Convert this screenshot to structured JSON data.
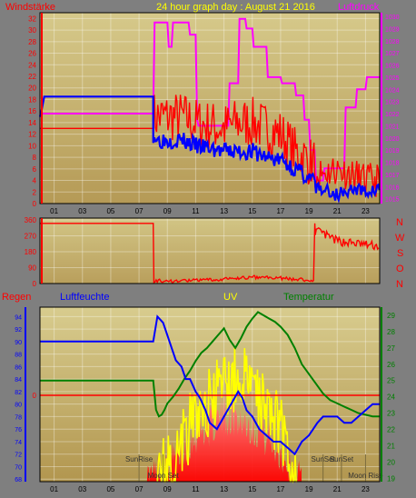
{
  "header": {
    "left_label": "Windstärke",
    "title": "24 hour graph day : August 21 2016",
    "right_label": "Luftdruck"
  },
  "wind_dir_labels": [
    "N",
    "W",
    "S",
    "O",
    "N"
  ],
  "bottom_labels": {
    "regen": "Regen",
    "luftfeuchte": "Luftfeuchte",
    "uv": "UV",
    "temperatur": "Temperatur"
  },
  "colors": {
    "plot_bg_top": "#d6c98a",
    "plot_bg_bottom": "#b59a56",
    "wind": "#ff0000",
    "gust": "#0000ff",
    "pressure": "#ff00ff",
    "humidity": "#0000ff",
    "temperature": "#008000",
    "uv": "#ffff00",
    "rain": "#ff0000",
    "title": "#ffff00",
    "luftfeuchte_label": "#0000ff",
    "temperatur_label": "#008000"
  },
  "chart_data": [
    {
      "type": "line",
      "name": "top",
      "x_tick_labels": [
        "01",
        "03",
        "05",
        "07",
        "09",
        "11",
        "13",
        "15",
        "17",
        "19",
        "21",
        "23"
      ],
      "y_left_ticks": [
        0,
        2,
        4,
        6,
        8,
        10,
        12,
        14,
        16,
        18,
        20,
        22,
        24,
        26,
        28,
        30,
        32
      ],
      "y_right_ticks": [
        1015,
        1016,
        1017,
        1018,
        1019,
        1020,
        1021,
        1022,
        1023,
        1024,
        1025,
        1026,
        1027,
        1028,
        1029,
        1030
      ],
      "ylim_left": [
        0,
        33
      ],
      "ylim_right": [
        1014.6,
        1030.3
      ],
      "xlim": [
        0,
        24
      ],
      "series": [
        {
          "key": "pressure",
          "axis": "right",
          "x": [
            0,
            0.3,
            8.0,
            8.1,
            9.0,
            9.1,
            9.3,
            9.4,
            10.5,
            10.6,
            11.0,
            11.1,
            11.2,
            13.3,
            13.4,
            14.0,
            14.1,
            14.5,
            14.6,
            15.0,
            15.1,
            16.0,
            16.1,
            17.0,
            17.1,
            18.0,
            18.1,
            18.6,
            18.7,
            19.0,
            19.1,
            19.4,
            19.5,
            20.0,
            20.1,
            21.5,
            21.6,
            22.3,
            22.4,
            23.0,
            23.1,
            24.0
          ],
          "y": [
            1022,
            1022,
            1022,
            1029.5,
            1029.5,
            1027.5,
            1027.5,
            1029.5,
            1029.5,
            1028.5,
            1028.5,
            1021.5,
            1021,
            1021,
            1024.5,
            1024.5,
            1029.8,
            1029.8,
            1029,
            1029,
            1027.5,
            1027.5,
            1025,
            1025,
            1024.5,
            1024.5,
            1023.5,
            1023.5,
            1021.5,
            1021.5,
            1019,
            1019,
            1016.5,
            1016.5,
            1017.5,
            1017.5,
            1022.5,
            1022.5,
            1024,
            1024,
            1025,
            1025
          ]
        },
        {
          "key": "wind",
          "axis": "left",
          "x": [
            0,
            0.3,
            8.0
          ],
          "y": [
            13,
            13,
            13
          ]
        },
        {
          "key": "gust",
          "axis": "left",
          "x": [
            0,
            0.1,
            0.3,
            8.0
          ],
          "y": [
            15,
            16,
            18.5,
            18.5
          ]
        }
      ],
      "noisy_segments": [
        {
          "key": "wind",
          "from": 8.0,
          "to": 19.5,
          "seed": 7,
          "profile": [
            [
              8.0,
              15
            ],
            [
              9.0,
              15
            ],
            [
              10.0,
              15
            ],
            [
              11,
              14
            ],
            [
              13,
              13
            ],
            [
              14,
              14
            ],
            [
              15,
              14
            ],
            [
              17,
              12
            ],
            [
              18,
              9
            ],
            [
              19.3,
              7
            ]
          ],
          "amp": 4.5,
          "step": 0.08
        },
        {
          "key": "wind",
          "from": 19.5,
          "to": 24.0,
          "seed": 11,
          "profile": [
            [
              19.5,
              5
            ],
            [
              21,
              6
            ],
            [
              22,
              5
            ],
            [
              23,
              4
            ],
            [
              24,
              4
            ]
          ],
          "amp": 3,
          "step": 0.08
        },
        {
          "key": "gust",
          "from": 8.0,
          "to": 19.5,
          "seed": 3,
          "profile": [
            [
              8.0,
              12
            ],
            [
              8.3,
              11
            ],
            [
              9,
              11
            ],
            [
              10,
              11
            ],
            [
              11,
              10
            ],
            [
              12,
              9.5
            ],
            [
              13,
              9
            ],
            [
              14,
              9
            ],
            [
              15,
              9
            ],
            [
              16,
              8
            ],
            [
              17,
              7.5
            ],
            [
              18,
              6
            ],
            [
              19.3,
              4
            ]
          ],
          "amp": 1.5,
          "step": 0.08
        },
        {
          "key": "gust",
          "from": 19.5,
          "to": 24.0,
          "seed": 5,
          "profile": [
            [
              19.5,
              3
            ],
            [
              20.5,
              2
            ],
            [
              21,
              1.5
            ],
            [
              22,
              2.5
            ],
            [
              23,
              2
            ],
            [
              24,
              2.5
            ]
          ],
          "amp": 1.2,
          "step": 0.08
        }
      ]
    },
    {
      "type": "line",
      "name": "direction",
      "y_ticks": [
        0,
        90,
        180,
        270,
        360
      ],
      "ylim": [
        0,
        370
      ],
      "xlim": [
        0,
        24
      ],
      "series": [
        {
          "key": "direction",
          "x": [
            0,
            0.3,
            8.0,
            8.05
          ],
          "y": [
            340,
            340,
            340,
            15
          ]
        }
      ],
      "noisy_segments": [
        {
          "key": "direction",
          "from": 8.05,
          "to": 19.4,
          "seed": 9,
          "profile": [
            [
              8.05,
              15
            ],
            [
              10,
              15
            ],
            [
              12,
              20
            ],
            [
              13,
              25
            ],
            [
              14,
              30
            ],
            [
              15,
              35
            ],
            [
              16,
              35
            ],
            [
              17,
              30
            ],
            [
              18,
              25
            ],
            [
              19.3,
              15
            ]
          ],
          "amp": 10,
          "step": 0.08
        },
        {
          "key": "direction",
          "from": 19.45,
          "to": 24.0,
          "seed": 13,
          "profile": [
            [
              19.45,
              300
            ],
            [
              20,
              280
            ],
            [
              21,
              240
            ],
            [
              22,
              230
            ],
            [
              23,
              220
            ],
            [
              24,
              210
            ]
          ],
          "amp": 25,
          "step": 0.08
        }
      ]
    },
    {
      "type": "line",
      "name": "bottom",
      "y_left_ticks": [
        68,
        70,
        72,
        74,
        76,
        78,
        80,
        82,
        84,
        86,
        88,
        90,
        92,
        94
      ],
      "y_right_ticks": [
        19,
        20,
        21,
        22,
        23,
        24,
        25,
        26,
        27,
        28,
        29
      ],
      "rain_label": "0",
      "ylim_left": [
        67.6,
        95.5
      ],
      "ylim_right": [
        18.8,
        29.5
      ],
      "xlim": [
        0,
        24
      ],
      "annotations": [
        {
          "text": "SunRise",
          "x": 7.0
        },
        {
          "text": "Moon Set",
          "x": 8.7
        },
        {
          "text": "SunSet",
          "x": 20.0
        },
        {
          "text": "SunSet",
          "x": 21.3
        },
        {
          "text": "Moon Rise",
          "x": 23.0
        }
      ],
      "series": [
        {
          "key": "humidity",
          "axis": "left",
          "x": [
            0,
            7.9,
            8.0,
            8.3,
            8.7,
            9.0,
            9.3,
            9.6,
            10.0,
            10.3,
            10.6,
            11.0,
            11.3,
            11.7,
            12.0,
            12.5,
            13.0,
            13.5,
            14.0,
            14.3,
            14.6,
            15.0,
            15.5,
            16.0,
            16.5,
            17.0,
            17.5,
            18.0,
            18.5,
            19.0,
            19.3,
            19.6,
            20.0,
            20.5,
            21.0,
            21.5,
            22.0,
            22.5,
            23.0,
            23.5,
            24.0
          ],
          "y": [
            90,
            90,
            90,
            94,
            93,
            91,
            89,
            87,
            86,
            84,
            84,
            82,
            81,
            79,
            77,
            76,
            78,
            80,
            82,
            81,
            79,
            78,
            76,
            75,
            74,
            74,
            73,
            72,
            74,
            75,
            76,
            77,
            78,
            78,
            78,
            77,
            77,
            78,
            79,
            80,
            80
          ]
        },
        {
          "key": "temperature",
          "axis": "right",
          "x": [
            0,
            7.9,
            8.0,
            8.2,
            8.4,
            8.6,
            8.8,
            9.0,
            9.4,
            9.8,
            10.2,
            10.6,
            11.0,
            11.4,
            11.8,
            12.2,
            12.6,
            13.0,
            13.4,
            13.8,
            14.2,
            14.6,
            15.0,
            15.4,
            15.8,
            16.2,
            16.6,
            17.0,
            17.5,
            18.0,
            18.5,
            19.0,
            19.5,
            20.0,
            20.5,
            21.0,
            21.5,
            22.0,
            22.5,
            23.0,
            23.5,
            24.0
          ],
          "y": [
            25,
            25,
            25,
            23.2,
            22.8,
            22.9,
            23.2,
            23.6,
            24.0,
            24.5,
            25.1,
            25.6,
            26.2,
            26.7,
            27.0,
            27.4,
            27.8,
            28.2,
            27.5,
            27.0,
            27.6,
            28.3,
            28.8,
            29.2,
            29.0,
            28.8,
            28.6,
            28.3,
            27.8,
            27.0,
            26.0,
            25.4,
            24.8,
            24.2,
            23.8,
            23.6,
            23.4,
            23.2,
            23.0,
            22.9,
            22.8,
            22.8
          ]
        },
        {
          "key": "rain",
          "axis": "left",
          "x": [
            0,
            24
          ],
          "y": [
            81.4,
            81.4
          ]
        }
      ],
      "uv_segment": {
        "from": 8.3,
        "to": 18.2,
        "seed": 21,
        "profile": [
          [
            8.3,
            0
          ],
          [
            9,
            1
          ],
          [
            10,
            2.5
          ],
          [
            11,
            4
          ],
          [
            12,
            5
          ],
          [
            13,
            6
          ],
          [
            14,
            6.5
          ],
          [
            15,
            6
          ],
          [
            16,
            5
          ],
          [
            17,
            3.5
          ],
          [
            17.6,
            2
          ],
          [
            18.2,
            0
          ]
        ],
        "amp": 2.2,
        "step": 0.07,
        "max": 11
      },
      "solar_segment": {
        "from": 7.5,
        "to": 18.5,
        "seed": 17,
        "profile": [
          [
            7.5,
            0
          ],
          [
            9,
            1
          ],
          [
            10,
            2
          ],
          [
            11,
            3
          ],
          [
            12,
            3.5
          ],
          [
            13,
            4.2
          ],
          [
            14,
            4
          ],
          [
            15,
            3.5
          ],
          [
            16,
            2.8
          ],
          [
            17,
            1.8
          ],
          [
            18,
            0.5
          ],
          [
            18.5,
            0
          ]
        ],
        "amp": 1.3,
        "step": 0.06,
        "max": 11
      }
    }
  ]
}
